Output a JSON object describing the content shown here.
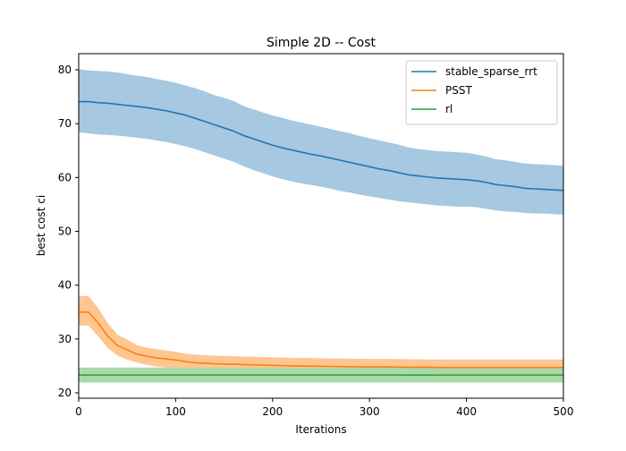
{
  "chart_data": {
    "type": "line",
    "title": "Simple 2D -- Cost",
    "xlabel": "Iterations",
    "ylabel": "best cost ci",
    "xlim": [
      0,
      500
    ],
    "ylim": [
      19,
      83
    ],
    "xticks": [
      0,
      100,
      200,
      300,
      400,
      500
    ],
    "yticks": [
      20,
      30,
      40,
      50,
      60,
      70,
      80
    ],
    "grid": false,
    "legend_position": "top-right",
    "series": [
      {
        "name": "stable_sparse_rrt",
        "color": "#1f77b4",
        "band_color": "#a6c8e1",
        "x": [
          0,
          10,
          20,
          30,
          40,
          50,
          60,
          70,
          80,
          90,
          100,
          110,
          120,
          130,
          140,
          150,
          160,
          170,
          180,
          190,
          200,
          210,
          220,
          230,
          240,
          250,
          260,
          270,
          280,
          290,
          300,
          310,
          320,
          330,
          340,
          350,
          360,
          370,
          380,
          390,
          400,
          410,
          420,
          430,
          440,
          450,
          460,
          470,
          480,
          490,
          500
        ],
        "mean": [
          74.1,
          74.1,
          73.9,
          73.8,
          73.6,
          73.4,
          73.2,
          73.0,
          72.7,
          72.4,
          72.0,
          71.6,
          71.0,
          70.4,
          69.8,
          69.2,
          68.6,
          67.8,
          67.2,
          66.6,
          66.0,
          65.5,
          65.1,
          64.7,
          64.3,
          64.0,
          63.6,
          63.2,
          62.8,
          62.4,
          62.0,
          61.6,
          61.3,
          60.9,
          60.5,
          60.3,
          60.1,
          59.9,
          59.8,
          59.7,
          59.6,
          59.4,
          59.1,
          58.7,
          58.5,
          58.3,
          58.0,
          57.9,
          57.8,
          57.7,
          57.6
        ],
        "lower": [
          68.4,
          68.2,
          68.0,
          67.9,
          67.8,
          67.6,
          67.4,
          67.2,
          66.9,
          66.6,
          66.2,
          65.8,
          65.3,
          64.7,
          64.1,
          63.5,
          62.9,
          62.1,
          61.4,
          60.8,
          60.2,
          59.7,
          59.3,
          58.9,
          58.6,
          58.3,
          57.9,
          57.5,
          57.2,
          56.8,
          56.5,
          56.2,
          55.9,
          55.6,
          55.4,
          55.2,
          55.0,
          54.8,
          54.7,
          54.6,
          54.6,
          54.5,
          54.2,
          53.9,
          53.7,
          53.6,
          53.4,
          53.3,
          53.3,
          53.2,
          53.1
        ],
        "upper": [
          80.1,
          79.9,
          79.8,
          79.7,
          79.5,
          79.2,
          78.9,
          78.7,
          78.3,
          78.0,
          77.6,
          77.1,
          76.6,
          76.0,
          75.3,
          74.8,
          74.2,
          73.3,
          72.7,
          72.1,
          71.5,
          71.1,
          70.6,
          70.2,
          69.8,
          69.4,
          69.0,
          68.6,
          68.2,
          67.7,
          67.3,
          66.9,
          66.5,
          66.1,
          65.6,
          65.3,
          65.1,
          64.9,
          64.8,
          64.7,
          64.6,
          64.3,
          63.9,
          63.4,
          63.2,
          62.9,
          62.6,
          62.5,
          62.4,
          62.3,
          62.2
        ]
      },
      {
        "name": "PSST",
        "color": "#ff7f0e",
        "band_color": "#ffc692",
        "x": [
          0,
          10,
          20,
          30,
          40,
          50,
          60,
          70,
          80,
          90,
          100,
          110,
          120,
          130,
          140,
          150,
          160,
          170,
          180,
          190,
          200,
          220,
          240,
          260,
          280,
          300,
          320,
          340,
          360,
          380,
          400,
          420,
          440,
          460,
          480,
          500
        ],
        "mean": [
          35.0,
          35.0,
          33.0,
          30.5,
          28.8,
          28.0,
          27.2,
          26.8,
          26.5,
          26.3,
          26.1,
          25.8,
          25.6,
          25.5,
          25.4,
          25.35,
          25.3,
          25.25,
          25.2,
          25.15,
          25.1,
          25.0,
          24.95,
          24.9,
          24.85,
          24.8,
          24.8,
          24.75,
          24.75,
          24.7,
          24.7,
          24.7,
          24.7,
          24.7,
          24.7,
          24.7
        ],
        "lower": [
          32.5,
          32.5,
          30.5,
          28.3,
          26.9,
          26.2,
          25.6,
          25.2,
          24.9,
          24.7,
          24.5,
          24.3,
          24.1,
          24.0,
          23.9,
          23.85,
          23.8,
          23.75,
          23.7,
          23.65,
          23.6,
          23.55,
          23.5,
          23.45,
          23.4,
          23.4,
          23.35,
          23.35,
          23.3,
          23.3,
          23.3,
          23.3,
          23.3,
          23.3,
          23.3,
          23.3
        ],
        "upper": [
          38.0,
          38.0,
          35.8,
          32.9,
          30.8,
          29.9,
          28.9,
          28.4,
          28.1,
          27.9,
          27.6,
          27.3,
          27.1,
          27.0,
          26.9,
          26.85,
          26.8,
          26.75,
          26.7,
          26.65,
          26.6,
          26.5,
          26.45,
          26.4,
          26.35,
          26.3,
          26.3,
          26.25,
          26.2,
          26.2,
          26.2,
          26.2,
          26.2,
          26.2,
          26.2,
          26.2
        ]
      },
      {
        "name": "rl",
        "color": "#2ca02c",
        "band_color": "#a9d8a9",
        "x": [
          0,
          500
        ],
        "mean": [
          23.3,
          23.3
        ],
        "lower": [
          21.9,
          21.9
        ],
        "upper": [
          24.7,
          24.7
        ]
      }
    ]
  }
}
